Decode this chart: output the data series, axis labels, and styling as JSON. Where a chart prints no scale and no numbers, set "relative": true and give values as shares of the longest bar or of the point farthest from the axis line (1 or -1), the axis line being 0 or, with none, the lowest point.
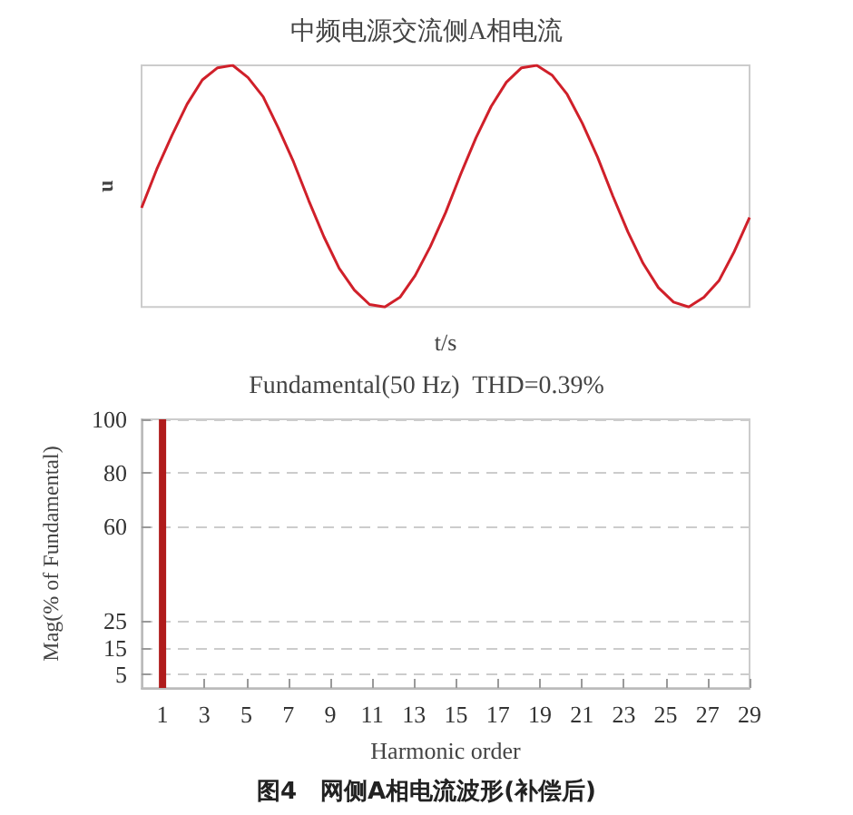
{
  "chart_data": [
    {
      "type": "line",
      "title": "中频电源交流侧A相电流",
      "xlabel": "t/s",
      "ylabel": "u",
      "relative": true,
      "categories": [
        null,
        null,
        null,
        null,
        null,
        null,
        null,
        null,
        null,
        null,
        null,
        null,
        null,
        null,
        null,
        null,
        null,
        null,
        null,
        null,
        null,
        null,
        null,
        null,
        null,
        null,
        null,
        null,
        null,
        null,
        null,
        null,
        null,
        null,
        null,
        null,
        null,
        null,
        null,
        null,
        null
      ],
      "series": [
        {
          "color": "#d0202a",
          "values": [
            0.41,
            0.57,
            0.71,
            0.84,
            0.94,
            0.99,
            1,
            0.95,
            0.87,
            0.74,
            0.6,
            0.44,
            0.29,
            0.16,
            0.07,
            0.01,
            0,
            0.04,
            0.13,
            0.25,
            0.39,
            0.55,
            0.7,
            0.83,
            0.93,
            0.99,
            1,
            0.96,
            0.88,
            0.76,
            0.62,
            0.46,
            0.31,
            0.18,
            0.08,
            0.02,
            0,
            0.04,
            0.11,
            0.23,
            0.37
          ]
        }
      ]
    },
    {
      "type": "bar",
      "title": "Fundamental(50 Hz)  THD=0.39%",
      "xlabel": "Harmonic order",
      "ylabel": "Mag(% of Fundamental)",
      "grid": "y",
      "annotations": [
        "图4　网侧A相电流波形(补偿后)"
      ],
      "xlim": [
        0,
        29
      ],
      "xticks": [
        1,
        3,
        5,
        7,
        9,
        11,
        13,
        15,
        17,
        19,
        21,
        23,
        25,
        27,
        29
      ],
      "ylim": [
        0,
        100
      ],
      "yticks": [
        5,
        15,
        25,
        60,
        80,
        100
      ],
      "series": [
        {
          "color": "#b01c1c",
          "x": [
            1
          ],
          "values": [
            100
          ]
        }
      ]
    }
  ]
}
